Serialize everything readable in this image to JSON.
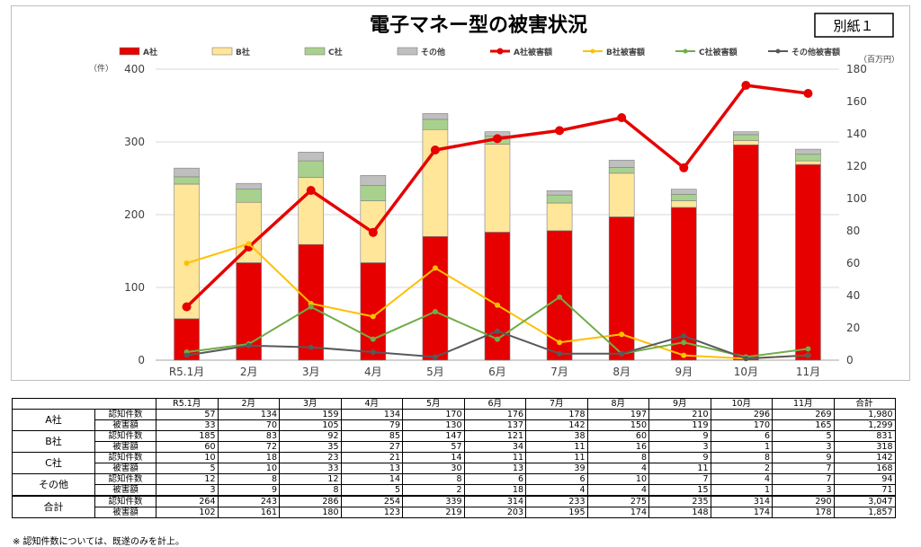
{
  "page": {
    "title": "電子マネー型の被害状況",
    "corner_label": "別紙１",
    "note": "※  認知件数については、既遂のみを計上。"
  },
  "colors": {
    "A": "#e60000",
    "B": "#ffe699",
    "C": "#a9d18e",
    "other": "#bfbfbf",
    "lineA": "#e60000",
    "lineB": "#ffc000",
    "lineC": "#70ad47",
    "lineOther": "#595959"
  },
  "chart_data": {
    "type": "bar",
    "title": "電子マネー型の被害状況",
    "categories": [
      "R5.1月",
      "2月",
      "3月",
      "4月",
      "5月",
      "6月",
      "7月",
      "8月",
      "9月",
      "10月",
      "11月"
    ],
    "left_axis": {
      "unit": "（件）",
      "range": [
        0,
        400
      ],
      "ticks": [
        0,
        100,
        200,
        300,
        400
      ]
    },
    "right_axis": {
      "unit": "（百万円）",
      "range": [
        0,
        180
      ],
      "ticks": [
        0,
        20,
        40,
        60,
        80,
        100,
        120,
        140,
        160,
        180
      ]
    },
    "grid": true,
    "legend_position": "top",
    "bar_series": [
      {
        "name": "A社",
        "color_key": "A",
        "values": [
          57,
          134,
          159,
          134,
          170,
          176,
          178,
          197,
          210,
          296,
          269
        ]
      },
      {
        "name": "B社",
        "color_key": "B",
        "values": [
          185,
          83,
          92,
          85,
          147,
          121,
          38,
          60,
          9,
          6,
          5
        ]
      },
      {
        "name": "C社",
        "color_key": "C",
        "values": [
          10,
          18,
          23,
          21,
          14,
          11,
          11,
          8,
          9,
          8,
          9
        ]
      },
      {
        "name": "その他",
        "color_key": "other",
        "values": [
          12,
          8,
          12,
          14,
          8,
          6,
          6,
          10,
          7,
          4,
          7
        ]
      }
    ],
    "line_series": [
      {
        "name": "A社被害額",
        "color_key": "lineA",
        "values": [
          33,
          70,
          105,
          79,
          130,
          137,
          142,
          150,
          119,
          170,
          165
        ]
      },
      {
        "name": "B社被害額",
        "color_key": "lineB",
        "values": [
          60,
          72,
          35,
          27,
          57,
          34,
          11,
          16,
          3,
          1,
          3
        ]
      },
      {
        "name": "C社被害額",
        "color_key": "lineC",
        "values": [
          5,
          10,
          33,
          13,
          30,
          13,
          39,
          4,
          11,
          2,
          7
        ]
      },
      {
        "name": "その他被害額",
        "color_key": "lineOther",
        "values": [
          3,
          9,
          8,
          5,
          2,
          18,
          4,
          4,
          15,
          1,
          3
        ]
      }
    ]
  },
  "table": {
    "columns": [
      "R5.1月",
      "2月",
      "3月",
      "4月",
      "5月",
      "6月",
      "7月",
      "8月",
      "9月",
      "10月",
      "11月",
      "合計"
    ],
    "groups": [
      {
        "label": "A社",
        "rows": [
          {
            "label": "認知件数",
            "values": [
              "57",
              "134",
              "159",
              "134",
              "170",
              "176",
              "178",
              "197",
              "210",
              "296",
              "269",
              "1,980"
            ]
          },
          {
            "label": "被害額",
            "values": [
              "33",
              "70",
              "105",
              "79",
              "130",
              "137",
              "142",
              "150",
              "119",
              "170",
              "165",
              "1,299"
            ]
          }
        ]
      },
      {
        "label": "B社",
        "rows": [
          {
            "label": "認知件数",
            "values": [
              "185",
              "83",
              "92",
              "85",
              "147",
              "121",
              "38",
              "60",
              "9",
              "6",
              "5",
              "831"
            ]
          },
          {
            "label": "被害額",
            "values": [
              "60",
              "72",
              "35",
              "27",
              "57",
              "34",
              "11",
              "16",
              "3",
              "1",
              "3",
              "318"
            ]
          }
        ]
      },
      {
        "label": "C社",
        "rows": [
          {
            "label": "認知件数",
            "values": [
              "10",
              "18",
              "23",
              "21",
              "14",
              "11",
              "11",
              "8",
              "9",
              "8",
              "9",
              "142"
            ]
          },
          {
            "label": "被害額",
            "values": [
              "5",
              "10",
              "33",
              "13",
              "30",
              "13",
              "39",
              "4",
              "11",
              "2",
              "7",
              "168"
            ]
          }
        ]
      },
      {
        "label": "その他",
        "rows": [
          {
            "label": "認知件数",
            "values": [
              "12",
              "8",
              "12",
              "14",
              "8",
              "6",
              "6",
              "10",
              "7",
              "4",
              "7",
              "94"
            ]
          },
          {
            "label": "被害額",
            "values": [
              "3",
              "9",
              "8",
              "5",
              "2",
              "18",
              "4",
              "4",
              "15",
              "1",
              "3",
              "71"
            ]
          }
        ]
      },
      {
        "label": "合計",
        "rows": [
          {
            "label": "認知件数",
            "values": [
              "264",
              "243",
              "286",
              "254",
              "339",
              "314",
              "233",
              "275",
              "235",
              "314",
              "290",
              "3,047"
            ]
          },
          {
            "label": "被害額",
            "values": [
              "102",
              "161",
              "180",
              "123",
              "219",
              "203",
              "195",
              "174",
              "148",
              "174",
              "178",
              "1,857"
            ]
          }
        ]
      }
    ]
  }
}
